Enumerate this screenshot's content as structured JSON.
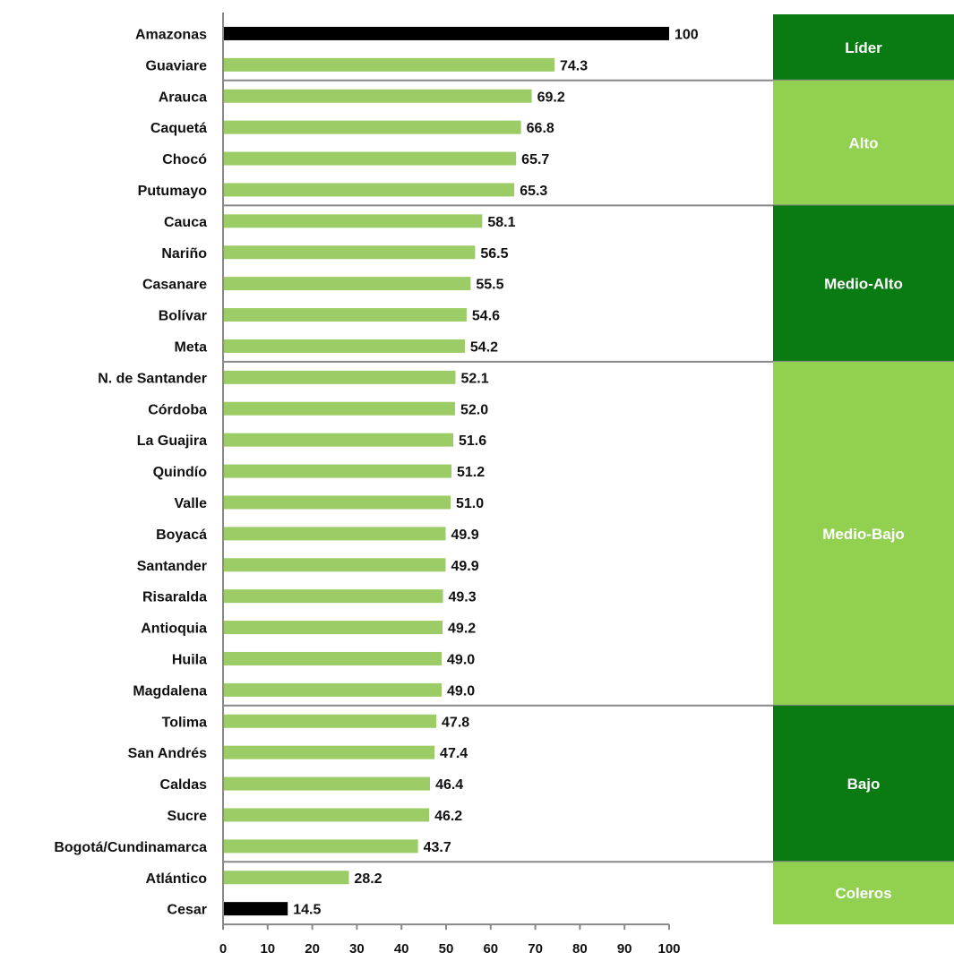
{
  "chart_data": {
    "type": "bar",
    "orientation": "horizontal",
    "categories": [
      "Amazonas",
      "Guaviare",
      "Arauca",
      "Caquetá",
      "Chocó",
      "Putumayo",
      "Cauca",
      "Nariño",
      "Casanare",
      "Bolívar",
      "Meta",
      "N. de Santander",
      "Córdoba",
      "La Guajira",
      "Quindío",
      "Valle",
      "Boyacá",
      "Santander",
      "Risaralda",
      "Antioquia",
      "Huila",
      "Magdalena",
      "Tolima",
      "San Andrés",
      "Caldas",
      "Sucre",
      "Bogotá/Cundinamarca",
      "Atlántico",
      "Cesar"
    ],
    "values": [
      100,
      74.3,
      69.2,
      66.8,
      65.7,
      65.3,
      58.1,
      56.5,
      55.5,
      54.6,
      54.2,
      52.1,
      52.0,
      51.6,
      51.2,
      51.0,
      49.9,
      49.9,
      49.3,
      49.2,
      49.0,
      49.0,
      47.8,
      47.4,
      46.4,
      46.2,
      43.7,
      28.2,
      14.5
    ],
    "value_labels": [
      "100",
      "74.3",
      "69.2",
      "66.8",
      "65.7",
      "65.3",
      "58.1",
      "56.5",
      "55.5",
      "54.6",
      "54.2",
      "52.1",
      "52.0",
      "51.6",
      "51.2",
      "51.0",
      "49.9",
      "49.9",
      "49.3",
      "49.2",
      "49.0",
      "49.0",
      "47.8",
      "47.4",
      "46.4",
      "46.2",
      "43.7",
      "28.2",
      "14.5"
    ],
    "highlighted_categories": [
      "Amazonas",
      "Cesar"
    ],
    "xlim": [
      0,
      100
    ],
    "xticks": [
      0,
      10,
      20,
      30,
      40,
      50,
      60,
      70,
      80,
      90,
      100
    ],
    "xtick_labels": [
      "0",
      "10",
      "20",
      "30",
      "40",
      "50",
      "60",
      "70",
      "80",
      "90",
      "100"
    ],
    "title": "",
    "xlabel": "",
    "ylabel": "",
    "grid": false,
    "groups": [
      {
        "label": "Líder",
        "start": 0,
        "end": 1
      },
      {
        "label": "Alto",
        "start": 2,
        "end": 5
      },
      {
        "label": "Medio-Alto",
        "start": 6,
        "end": 10
      },
      {
        "label": "Medio-Bajo",
        "start": 11,
        "end": 21
      },
      {
        "label": "Bajo",
        "start": 22,
        "end": 26
      },
      {
        "label": "Coleros",
        "start": 27,
        "end": 28
      }
    ],
    "colors": {
      "bar": "#9ccc65",
      "bar_highlight": "#000000",
      "group_dark": "#0a7a12",
      "group_light": "#92d050",
      "group_text": "#ffffff",
      "separator": "#888888",
      "text": "#111111"
    }
  }
}
